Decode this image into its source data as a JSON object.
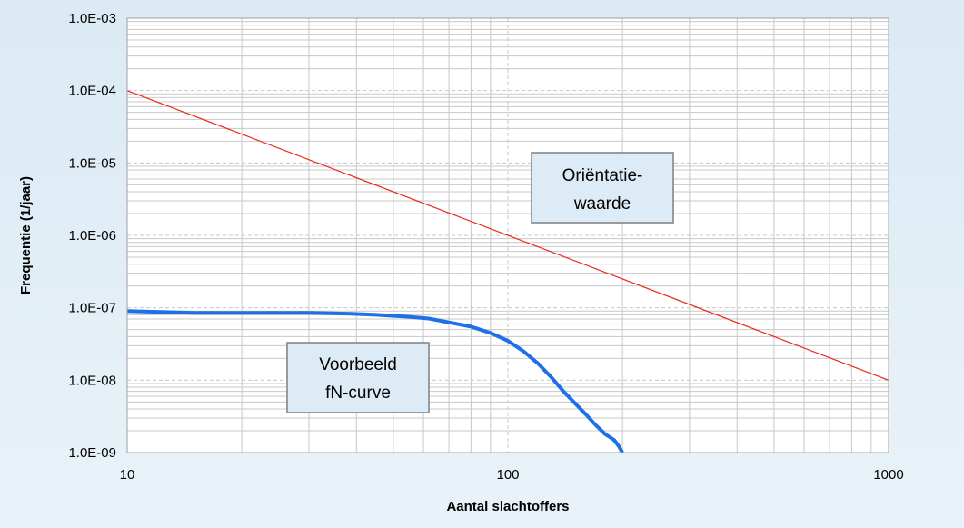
{
  "chart_data": {
    "type": "line",
    "x_scale": "log",
    "y_scale": "log",
    "xlim": [
      10,
      1000
    ],
    "ylim": [
      1e-09,
      0.001
    ],
    "xlabel": "Aantal slachtoffers",
    "ylabel": "Frequentie (1/jaar)",
    "x_ticks": [
      "10",
      "100",
      "1000"
    ],
    "y_ticks": [
      "1.0E-09",
      "1.0E-08",
      "1.0E-07",
      "1.0E-06",
      "1.0E-05",
      "1.0E-04",
      "1.0E-03"
    ],
    "grid": true,
    "annotations": [
      {
        "text": "Oriëntatie-\nwaarde",
        "x": 150,
        "y": 3e-06
      },
      {
        "text": "Voorbeeld\nfN-curve",
        "x": 30,
        "y": 1.2e-08
      }
    ],
    "series": [
      {
        "color": "#e8291c",
        "x": [
          10,
          1000
        ],
        "y": [
          0.0001,
          1e-08
        ]
      },
      {
        "color": "#1f6fe6",
        "x": [
          10,
          15,
          30,
          38,
          45,
          55,
          62,
          70,
          80,
          90,
          100,
          110,
          120,
          130,
          140,
          150,
          160,
          170,
          180,
          190,
          196,
          200
        ],
        "y": [
          9e-08,
          8.5e-08,
          8.5e-08,
          8.3e-08,
          8e-08,
          7.5e-08,
          7.1e-08,
          6.3e-08,
          5.5e-08,
          4.5e-08,
          3.5e-08,
          2.5e-08,
          1.7e-08,
          1.1e-08,
          7e-09,
          4.8e-09,
          3.4e-09,
          2.4e-09,
          1.8e-09,
          1.5e-09,
          1.2e-09,
          1e-09
        ]
      }
    ]
  }
}
